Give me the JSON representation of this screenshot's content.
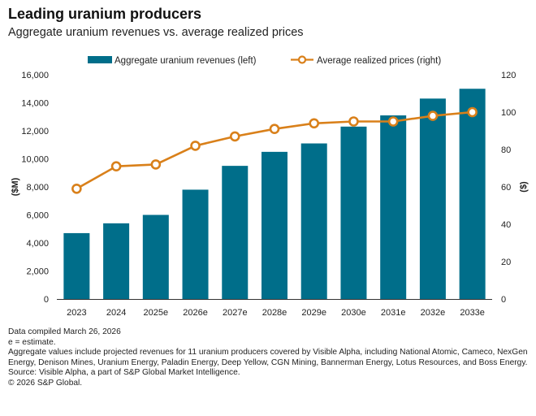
{
  "header": {
    "title": "Leading uranium producers",
    "subtitle": "Aggregate uranium revenues vs. average realized prices"
  },
  "chart_data": {
    "type": "bar",
    "categories": [
      "2023",
      "2024",
      "2025e",
      "2026e",
      "2027e",
      "2028e",
      "2029e",
      "2030e",
      "2031e",
      "2032e",
      "2033e"
    ],
    "series": [
      {
        "name": "Aggregate uranium revenues (left)",
        "type": "bar",
        "axis": "left",
        "values": [
          4700,
          5400,
          6000,
          7800,
          9500,
          10500,
          11100,
          12300,
          13100,
          14300,
          15000
        ]
      },
      {
        "name": "Average realized prices (right)",
        "type": "line",
        "axis": "right",
        "values": [
          59,
          71,
          72,
          82,
          87,
          91,
          94,
          95,
          95,
          98,
          100
        ]
      }
    ],
    "left_axis": {
      "label": "($M)",
      "ylim": [
        0,
        16000
      ],
      "ticks": [
        "0",
        "2,000",
        "4,000",
        "6,000",
        "8,000",
        "10,000",
        "12,000",
        "14,000",
        "16,000"
      ]
    },
    "right_axis": {
      "label": "($)",
      "ylim": [
        0,
        120
      ],
      "ticks": [
        "0",
        "20",
        "40",
        "60",
        "80",
        "100",
        "120"
      ]
    },
    "legend_position": "top",
    "colors": {
      "bar": "#006E8A",
      "line": "#D9801A",
      "axis": "#333333"
    }
  },
  "notes": {
    "compiled": "Data compiled March 26, 2026",
    "estimate": "e = estimate.",
    "aggregate": "Aggregate values include projected revenues for 11 uranium producers covered by Visible Alpha, including National Atomic, Cameco, NexGen Energy, Denison Mines, Uranium Energy, Paladin Energy, Deep Yellow, CGN Mining, Bannerman Energy, Lotus Resources, and Boss Energy.",
    "source": "Source: Visible Alpha, a part of S&P Global Market Intelligence.",
    "copyright": "© 2026 S&P Global."
  }
}
